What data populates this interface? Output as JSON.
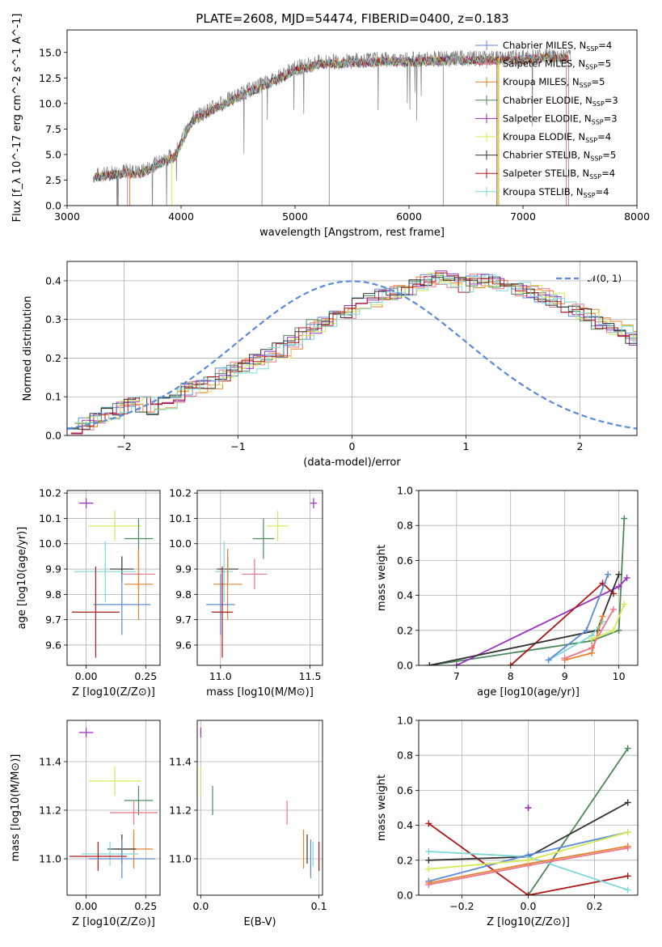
{
  "figure": {
    "title": "PLATE=2608, MJD=54474, FIBERID=0400, z=0.183"
  },
  "colors": {
    "Chabrier MILES": "#5b8bd9",
    "Salpeter MILES": "#e8788a",
    "Kroupa MILES": "#e6822f",
    "Chabrier ELODIE": "#4a8a5a",
    "Salpeter ELODIE": "#9b2fbf",
    "Kroupa ELODIE": "#d4ea55",
    "Chabrier STELIB": "#333333",
    "Salpeter STELIB": "#b01818",
    "Kroupa STELIB": "#7fd8d8",
    "data": "#808080",
    "normal": "#5b8bd9"
  },
  "chart_data": [
    {
      "type": "line",
      "id": "spectrum",
      "xlabel": "wavelength [Angstrom, rest frame]",
      "ylabel": "Flux [f_λ 10^-17 erg cm^-2 s^-1 A^-1]",
      "xlim": [
        3000,
        8000
      ],
      "ylim": [
        0,
        17.2
      ],
      "xticks": [
        3000,
        4000,
        5000,
        6000,
        7000,
        8000
      ],
      "yticks": [
        0.0,
        2.5,
        5.0,
        7.5,
        10.0,
        12.5,
        15.0
      ],
      "legend_position": "top-right",
      "legend": [
        {
          "name": "Chabrier MILES",
          "nssp": "4"
        },
        {
          "name": "Salpeter MILES",
          "nssp": "5"
        },
        {
          "name": "Kroupa MILES",
          "nssp": "5"
        },
        {
          "name": "Chabrier ELODIE",
          "nssp": "3"
        },
        {
          "name": "Salpeter ELODIE",
          "nssp": "3"
        },
        {
          "name": "Kroupa ELODIE",
          "nssp": "4"
        },
        {
          "name": "Chabrier STELIB",
          "nssp": "5"
        },
        {
          "name": "Salpeter STELIB",
          "nssp": "4"
        },
        {
          "name": "Kroupa STELIB",
          "nssp": "4"
        }
      ],
      "continuum": [
        [
          3230,
          2.9
        ],
        [
          3500,
          3.4
        ],
        [
          3650,
          3.3
        ],
        [
          3800,
          4.2
        ],
        [
          3950,
          5.0
        ],
        [
          4000,
          6.3
        ],
        [
          4100,
          8.5
        ],
        [
          4300,
          9.7
        ],
        [
          4500,
          10.8
        ],
        [
          4800,
          12.3
        ],
        [
          5000,
          13.4
        ],
        [
          5200,
          14.0
        ],
        [
          5500,
          14.2
        ],
        [
          5800,
          14.3
        ],
        [
          6100,
          14.3
        ],
        [
          6400,
          14.4
        ],
        [
          6700,
          14.4
        ],
        [
          7000,
          14.5
        ],
        [
          7200,
          14.7
        ],
        [
          7400,
          14.6
        ]
      ],
      "notes_visible": "model fits overlaid on observed spectrum"
    },
    {
      "type": "step",
      "id": "residuals",
      "xlabel": "(data-model)/error",
      "ylabel": "Normed distribution",
      "xlim": [
        -2.5,
        2.5
      ],
      "ylim": [
        0,
        0.45
      ],
      "xticks": [
        -2,
        -1,
        0,
        1,
        2
      ],
      "yticks": [
        0.0,
        0.1,
        0.2,
        0.3,
        0.4
      ],
      "legend_label": "𝒩(0, 1)",
      "legend_position": "top-right",
      "bin_width": 0.1,
      "bins_from": -2.5,
      "base_hist": [
        0.02,
        0.03,
        0.05,
        0.06,
        0.07,
        0.08,
        0.08,
        0.07,
        0.08,
        0.1,
        0.12,
        0.13,
        0.14,
        0.16,
        0.17,
        0.18,
        0.19,
        0.21,
        0.22,
        0.24,
        0.26,
        0.28,
        0.29,
        0.31,
        0.32,
        0.34,
        0.35,
        0.36,
        0.37,
        0.38,
        0.39,
        0.4,
        0.41,
        0.4,
        0.39,
        0.4,
        0.4,
        0.39,
        0.38,
        0.38,
        0.37,
        0.36,
        0.35,
        0.33,
        0.32,
        0.31,
        0.29,
        0.28,
        0.27,
        0.25,
        0.24,
        0.22,
        0.21,
        0.2,
        0.18,
        0.17,
        0.15,
        0.14,
        0.13,
        0.12,
        0.1,
        0.09,
        0.08,
        0.07,
        0.07,
        0.06,
        0.05,
        0.05,
        0.04,
        0.04,
        0.04,
        0.03,
        0.03,
        0.03,
        0.03,
        0.03,
        0.02,
        0.02,
        0.02,
        0.02
      ]
    },
    {
      "type": "errorbar",
      "id": "age_vs_Z",
      "xlabel": "Z [log10(Z/Z⊙)]",
      "ylabel": "age [log10(age/yr)]",
      "xlim": [
        -0.08,
        0.31
      ],
      "ylim": [
        9.52,
        10.21
      ],
      "xticks": [
        0.0,
        0.25
      ],
      "yticks": [
        9.6,
        9.7,
        9.8,
        9.9,
        10.0,
        10.1,
        10.2
      ],
      "points": [
        {
          "model": "Salpeter ELODIE",
          "x": 0.0,
          "xerr": 0.03,
          "y": 10.16,
          "yerr": 0.02
        },
        {
          "model": "Kroupa ELODIE",
          "x": 0.12,
          "xerr": 0.11,
          "y": 10.07,
          "yerr": 0.06
        },
        {
          "model": "Chabrier ELODIE",
          "x": 0.22,
          "xerr": 0.06,
          "y": 10.02,
          "yerr": 0.08
        },
        {
          "model": "Chabrier STELIB",
          "x": 0.15,
          "xerr": 0.05,
          "y": 9.9,
          "yerr": 0.05
        },
        {
          "model": "Kroupa STELIB",
          "x": 0.08,
          "xerr": 0.13,
          "y": 9.89,
          "yerr": 0.12
        },
        {
          "model": "Salpeter MILES",
          "x": 0.22,
          "xerr": 0.07,
          "y": 9.88,
          "yerr": 0.06
        },
        {
          "model": "Kroupa MILES",
          "x": 0.22,
          "xerr": 0.06,
          "y": 9.84,
          "yerr": 0.14
        },
        {
          "model": "Chabrier MILES",
          "x": 0.15,
          "xerr": 0.12,
          "y": 9.76,
          "yerr": 0.12
        },
        {
          "model": "Salpeter STELIB",
          "x": 0.04,
          "xerr": 0.1,
          "y": 9.73,
          "yerr": 0.18
        }
      ]
    },
    {
      "type": "errorbar",
      "id": "age_vs_mass",
      "xlabel": "mass [log10(M/M⊙)]",
      "ylabel": "",
      "xlim": [
        10.87,
        11.57
      ],
      "ylim": [
        9.52,
        10.21
      ],
      "xticks": [
        11.0,
        11.5
      ],
      "yticks": [
        9.6,
        9.7,
        9.8,
        9.9,
        10.0,
        10.1,
        10.2
      ],
      "points": [
        {
          "model": "Salpeter ELODIE",
          "x": 11.52,
          "xerr": 0.02,
          "y": 10.16,
          "yerr": 0.02
        },
        {
          "model": "Kroupa ELODIE",
          "x": 11.32,
          "xerr": 0.06,
          "y": 10.07,
          "yerr": 0.06
        },
        {
          "model": "Chabrier ELODIE",
          "x": 11.24,
          "xerr": 0.06,
          "y": 10.02,
          "yerr": 0.08
        },
        {
          "model": "Chabrier STELIB",
          "x": 11.04,
          "xerr": 0.06,
          "y": 9.9,
          "yerr": 0.05
        },
        {
          "model": "Kroupa STELIB",
          "x": 11.02,
          "xerr": 0.05,
          "y": 9.89,
          "yerr": 0.12
        },
        {
          "model": "Salpeter MILES",
          "x": 11.19,
          "xerr": 0.07,
          "y": 9.88,
          "yerr": 0.06
        },
        {
          "model": "Kroupa MILES",
          "x": 11.04,
          "xerr": 0.08,
          "y": 9.84,
          "yerr": 0.14
        },
        {
          "model": "Chabrier MILES",
          "x": 11.0,
          "xerr": 0.08,
          "y": 9.76,
          "yerr": 0.12
        },
        {
          "model": "Salpeter STELIB",
          "x": 11.01,
          "xerr": 0.06,
          "y": 9.73,
          "yerr": 0.18
        }
      ]
    },
    {
      "type": "line",
      "id": "massweight_vs_age",
      "xlabel": "age [log10(age/yr)]",
      "ylabel": "mass weight",
      "xlim": [
        6.3,
        10.35
      ],
      "ylim": [
        0,
        1.0
      ],
      "xticks": [
        7,
        8,
        9,
        10
      ],
      "yticks": [
        0.0,
        0.2,
        0.4,
        0.6,
        0.8,
        1.0
      ],
      "series": [
        {
          "model": "Chabrier ELODIE",
          "x": [
            6.5,
            9.5,
            10.0,
            10.1
          ],
          "y": [
            0.0,
            0.14,
            0.2,
            0.84
          ]
        },
        {
          "model": "Salpeter ELODIE",
          "x": [
            7.0,
            10.0,
            10.15
          ],
          "y": [
            0.0,
            0.45,
            0.5
          ]
        },
        {
          "model": "Salpeter STELIB",
          "x": [
            8.0,
            9.7,
            9.9
          ],
          "y": [
            0.0,
            0.47,
            0.41
          ]
        },
        {
          "model": "Chabrier STELIB",
          "x": [
            6.5,
            9.6,
            10.0
          ],
          "y": [
            0.0,
            0.2,
            0.52
          ]
        },
        {
          "model": "Kroupa STELIB",
          "x": [
            8.7,
            9.5,
            9.7
          ],
          "y": [
            0.03,
            0.17,
            0.25
          ]
        },
        {
          "model": "Chabrier MILES",
          "x": [
            8.7,
            9.4,
            9.8
          ],
          "y": [
            0.03,
            0.2,
            0.52
          ]
        },
        {
          "model": "Kroupa MILES",
          "x": [
            9.0,
            9.5,
            9.7
          ],
          "y": [
            0.03,
            0.07,
            0.28
          ]
        },
        {
          "model": "Salpeter MILES",
          "x": [
            9.0,
            9.5,
            9.9
          ],
          "y": [
            0.04,
            0.1,
            0.32
          ]
        },
        {
          "model": "Kroupa ELODIE",
          "x": [
            9.5,
            9.9,
            10.1
          ],
          "y": [
            0.15,
            0.2,
            0.35
          ]
        }
      ]
    },
    {
      "type": "errorbar",
      "id": "mass_vs_Z",
      "xlabel": "Z [log10(Z/Z⊙)]",
      "ylabel": "mass [log10(M/M⊙)]",
      "xlim": [
        -0.08,
        0.31
      ],
      "ylim": [
        10.85,
        11.57
      ],
      "xticks": [
        0.0,
        0.25
      ],
      "yticks": [
        11.0,
        11.2,
        11.4
      ],
      "points": [
        {
          "model": "Salpeter ELODIE",
          "x": 0.0,
          "xerr": 0.03,
          "y": 11.52,
          "yerr": 0.02
        },
        {
          "model": "Kroupa ELODIE",
          "x": 0.12,
          "xerr": 0.11,
          "y": 11.32,
          "yerr": 0.06
        },
        {
          "model": "Chabrier ELODIE",
          "x": 0.22,
          "xerr": 0.06,
          "y": 11.24,
          "yerr": 0.06
        },
        {
          "model": "Salpeter MILES",
          "x": 0.2,
          "xerr": 0.1,
          "y": 11.19,
          "yerr": 0.05
        },
        {
          "model": "Kroupa MILES",
          "x": 0.2,
          "xerr": 0.08,
          "y": 11.04,
          "yerr": 0.08
        },
        {
          "model": "Chabrier STELIB",
          "x": 0.15,
          "xerr": 0.06,
          "y": 11.04,
          "yerr": 0.06
        },
        {
          "model": "Kroupa STELIB",
          "x": 0.1,
          "xerr": 0.12,
          "y": 11.02,
          "yerr": 0.05
        },
        {
          "model": "Salpeter STELIB",
          "x": 0.05,
          "xerr": 0.12,
          "y": 11.01,
          "yerr": 0.06
        },
        {
          "model": "Chabrier MILES",
          "x": 0.15,
          "xerr": 0.14,
          "y": 11.0,
          "yerr": 0.08
        }
      ]
    },
    {
      "type": "errorbar",
      "id": "mass_vs_ebv",
      "xlabel": "E(B-V)",
      "ylabel": "",
      "xlim": [
        -0.003,
        0.103
      ],
      "ylim": [
        10.85,
        11.57
      ],
      "xticks": [
        0.0,
        0.1
      ],
      "yticks": [
        11.0,
        11.2,
        11.4
      ],
      "points": [
        {
          "model": "Salpeter ELODIE",
          "x": 0.0,
          "y": 11.52,
          "yerr": 0.02
        },
        {
          "model": "Kroupa ELODIE",
          "x": 0.0,
          "y": 11.32,
          "yerr": 0.06
        },
        {
          "model": "Chabrier ELODIE",
          "x": 0.01,
          "y": 11.24,
          "yerr": 0.06
        },
        {
          "model": "Salpeter MILES",
          "x": 0.073,
          "y": 11.19,
          "yerr": 0.05
        },
        {
          "model": "Kroupa MILES",
          "x": 0.087,
          "y": 11.04,
          "yerr": 0.08
        },
        {
          "model": "Chabrier STELIB",
          "x": 0.09,
          "y": 11.04,
          "yerr": 0.06
        },
        {
          "model": "Kroupa STELIB",
          "x": 0.095,
          "y": 11.02,
          "yerr": 0.05
        },
        {
          "model": "Salpeter STELIB",
          "x": 0.1,
          "y": 11.01,
          "yerr": 0.06
        },
        {
          "model": "Chabrier MILES",
          "x": 0.093,
          "y": 11.0,
          "yerr": 0.08
        }
      ]
    },
    {
      "type": "line",
      "id": "massweight_vs_Z",
      "xlabel": "Z [log10(Z/Z⊙)]",
      "ylabel": "mass weight",
      "xlim": [
        -0.33,
        0.33
      ],
      "ylim": [
        0,
        1.0
      ],
      "xticks": [
        -0.2,
        0.0,
        0.2
      ],
      "yticks": [
        0.0,
        0.2,
        0.4,
        0.6,
        0.8,
        1.0
      ],
      "series": [
        {
          "model": "Chabrier ELODIE",
          "x": [
            0.0,
            0.3
          ],
          "y": [
            0.0,
            0.84
          ]
        },
        {
          "model": "Salpeter ELODIE",
          "x": [
            0.0,
            0.0
          ],
          "y": [
            0.5,
            0.5
          ]
        },
        {
          "model": "Salpeter STELIB",
          "x": [
            -0.3,
            0.0,
            0.3
          ],
          "y": [
            0.41,
            0.0,
            0.11
          ]
        },
        {
          "model": "Chabrier STELIB",
          "x": [
            -0.3,
            0.0,
            0.3
          ],
          "y": [
            0.2,
            0.22,
            0.53
          ]
        },
        {
          "model": "Kroupa STELIB",
          "x": [
            -0.3,
            0.0,
            0.3
          ],
          "y": [
            0.25,
            0.22,
            0.03
          ]
        },
        {
          "model": "Chabrier MILES",
          "x": [
            -0.3,
            0.0,
            0.3
          ],
          "y": [
            0.08,
            0.23,
            0.36
          ]
        },
        {
          "model": "Kroupa MILES",
          "x": [
            -0.3,
            0.0,
            0.3
          ],
          "y": [
            0.07,
            0.18,
            0.28
          ]
        },
        {
          "model": "Salpeter MILES",
          "x": [
            -0.3,
            0.0,
            0.3
          ],
          "y": [
            0.06,
            0.17,
            0.27
          ]
        },
        {
          "model": "Kroupa ELODIE",
          "x": [
            -0.3,
            0.0,
            0.3
          ],
          "y": [
            0.15,
            0.2,
            0.36
          ]
        }
      ]
    }
  ]
}
